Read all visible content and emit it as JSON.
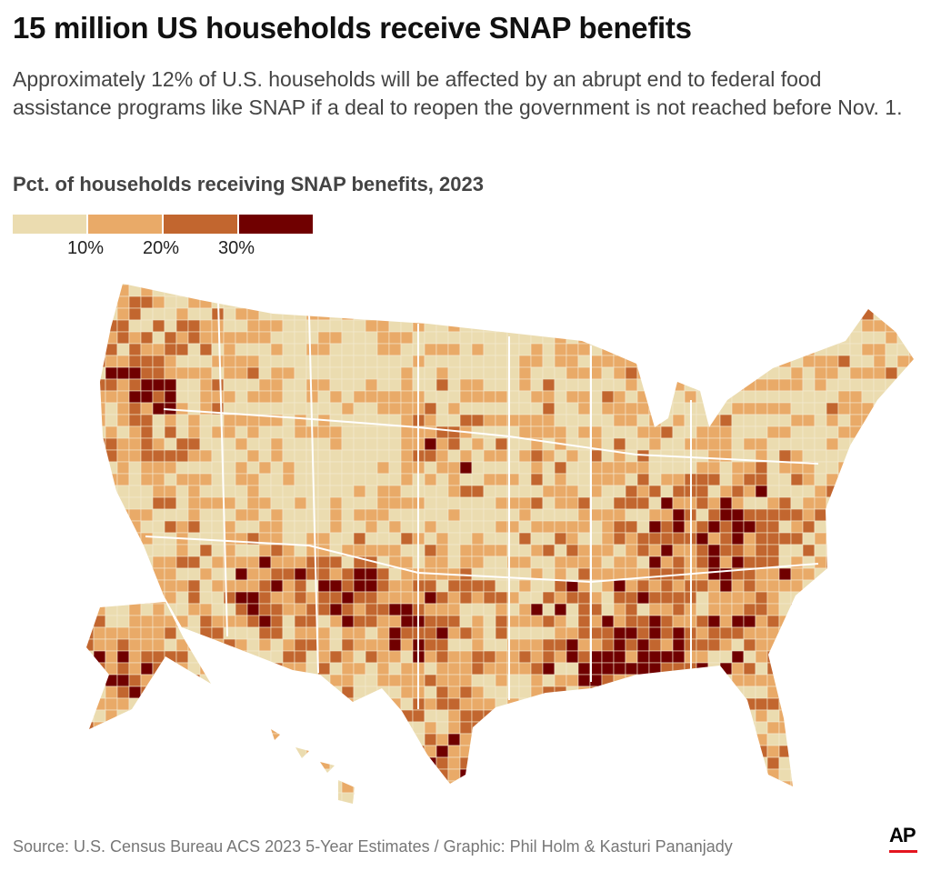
{
  "title": "15 million US households receive SNAP benefits",
  "subtitle": "Approximately 12% of U.S. households will be affected by an abrupt end to federal food assistance programs like SNAP if a deal to reopen the government is not reached before Nov. 1.",
  "legend": {
    "title": "Pct. of households receiving SNAP benefits, 2023",
    "colors": [
      "#ebdcb0",
      "#e9aa68",
      "#c2662f",
      "#700000"
    ],
    "ticks": [
      "10%",
      "20%",
      "30%"
    ]
  },
  "map": {
    "type": "choropleth",
    "geography": "US counties",
    "border_color": "#ffffff"
  },
  "source": "Source: U.S. Census Bureau ACS 2023 5-Year Estimates / Graphic: Phil Holm & Kasturi Pananjady",
  "logo": "AP",
  "logo_accent": "#e4151f"
}
